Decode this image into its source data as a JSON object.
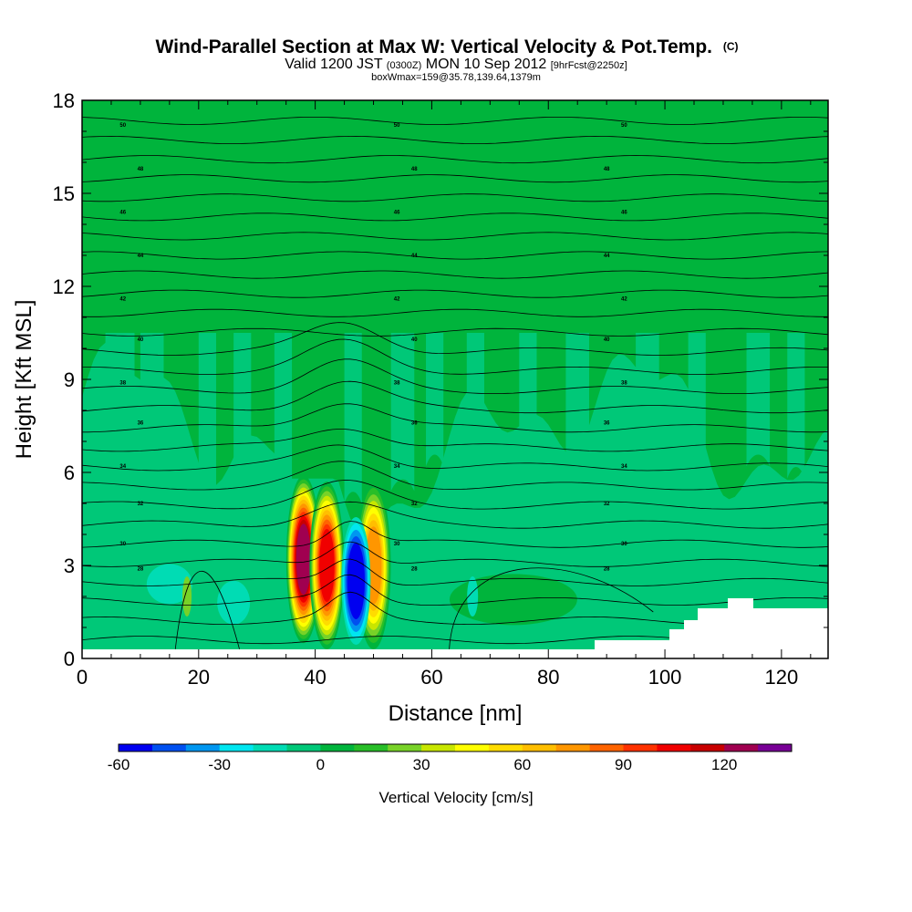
{
  "chart_data": {
    "type": "heatmap",
    "title": "Wind-Parallel Section at Max W: Vertical Velocity & Pot.Temp.",
    "title_unit": "(C)",
    "subtitle": {
      "part1": "Valid 1200 JST",
      "part2": "(0300Z)",
      "part3": "MON 10 Sep 2012",
      "part4": "[9hrFcst@2250z]"
    },
    "subtitle2": "boxWmax=159@35.78,139.64,1379m",
    "xlabel": "Distance [nm]",
    "ylabel": "Height [Kft MSL]",
    "xlim": [
      0,
      128
    ],
    "ylim": [
      0,
      18
    ],
    "xticks": [
      "0",
      "20",
      "40",
      "60",
      "80",
      "100",
      "120"
    ],
    "yticks": [
      "0",
      "3",
      "6",
      "9",
      "12",
      "15",
      "18"
    ],
    "colorbar": {
      "label": "Vertical Velocity [cm/s]",
      "min": -60,
      "max": 140,
      "step": 10,
      "ticks": [
        "-60",
        "-30",
        "0",
        "30",
        "60",
        "90",
        "120"
      ],
      "tick_values": [
        -60,
        -30,
        0,
        30,
        60,
        90,
        120
      ],
      "colors": [
        "#0000f0",
        "#0050f0",
        "#0096f0",
        "#00e6f0",
        "#00dcb4",
        "#00c878",
        "#00b43c",
        "#28be28",
        "#78d228",
        "#c8e600",
        "#ffff00",
        "#ffdc00",
        "#ffbe00",
        "#ff9600",
        "#ff6400",
        "#ff3200",
        "#f00000",
        "#c80000",
        "#a00050",
        "#780096"
      ]
    },
    "isentrope_labels": [
      "50",
      "48",
      "46",
      "44",
      "42",
      "40",
      "38",
      "36",
      "34",
      "32",
      "30",
      "28"
    ],
    "updraft_cores": [
      {
        "x": 38,
        "y_peak": 3.2,
        "w_max": 120
      },
      {
        "x": 42,
        "y_peak": 3.0,
        "w_max": 100
      },
      {
        "x": 50,
        "y_peak": 3.0,
        "w_max": 70
      }
    ],
    "downdraft_cores": [
      {
        "x": 47,
        "y_peak": 2.5,
        "w_min": -60
      }
    ]
  }
}
